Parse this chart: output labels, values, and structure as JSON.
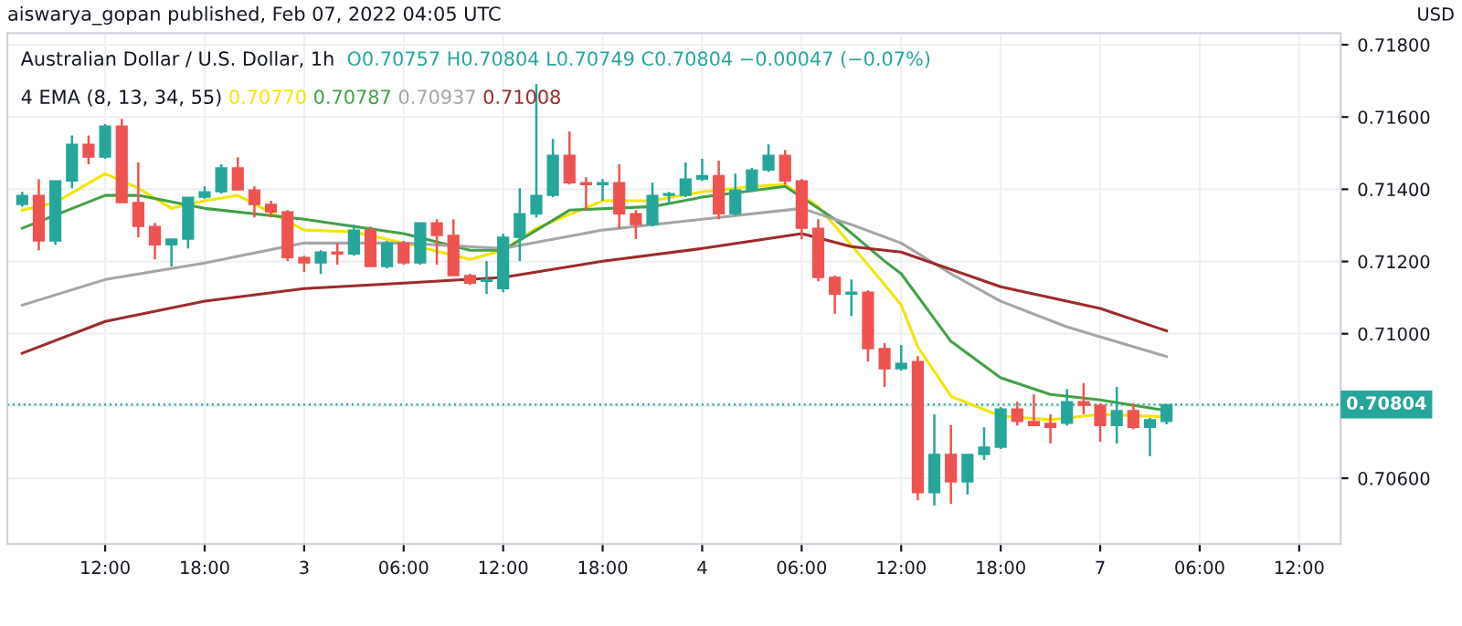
{
  "chart_data": {
    "type": "candlestick",
    "title": "Australian Dollar / U.S. Dollar, 1h",
    "subtitle": "O0.70757 H0.70804 L0.70749 C0.70804 −0.00047 (−0.07%)",
    "ylabel": "USD",
    "annotations": [
      "aiswarya_gopan published, Feb 07, 2022 04:05 UTC",
      "4 EMA (8, 13, 34, 55)"
    ],
    "categories": [
      null,
      null,
      null,
      null,
      null,
      "12:00",
      null,
      null,
      null,
      null,
      null,
      "18:00",
      null,
      null,
      null,
      null,
      null,
      "3",
      null,
      null,
      null,
      null,
      null,
      "06:00",
      null,
      null,
      null,
      null,
      null,
      "12:00",
      null,
      null,
      null,
      null,
      null,
      "18:00",
      null,
      null,
      null,
      null,
      null,
      "4",
      null,
      null,
      null,
      null,
      null,
      "06:00",
      null,
      null,
      null,
      null,
      null,
      "12:00",
      null,
      null,
      null,
      null,
      null,
      "18:00",
      null,
      null,
      null,
      null,
      null,
      "7",
      null,
      null,
      null,
      null,
      null,
      "06:00",
      null,
      null,
      null,
      null,
      null,
      "12:00",
      null,
      null
    ],
    "ohlc": [
      [
        0.71358,
        0.71393,
        0.71352,
        0.71383
      ],
      [
        0.71383,
        0.71428,
        0.71231,
        0.71257
      ],
      [
        0.71257,
        0.71423,
        0.71246,
        0.71423
      ],
      [
        0.71423,
        0.71549,
        0.71403,
        0.71524
      ],
      [
        0.71524,
        0.71549,
        0.71469,
        0.71489
      ],
      [
        0.71489,
        0.7158,
        0.71484,
        0.71575
      ],
      [
        0.71575,
        0.71595,
        0.71363,
        0.71363
      ],
      [
        0.71363,
        0.71474,
        0.71267,
        0.71297
      ],
      [
        0.71297,
        0.71307,
        0.71206,
        0.71246
      ],
      [
        0.71246,
        0.71262,
        0.71186,
        0.71262
      ],
      [
        0.71262,
        0.71378,
        0.71236,
        0.71378
      ],
      [
        0.71378,
        0.71408,
        0.71373,
        0.71393
      ],
      [
        0.71393,
        0.71469,
        0.71388,
        0.71459
      ],
      [
        0.71459,
        0.71489,
        0.71398,
        0.71398
      ],
      [
        0.71398,
        0.71408,
        0.71322,
        0.71358
      ],
      [
        0.71358,
        0.71368,
        0.71322,
        0.71337
      ],
      [
        0.71337,
        0.71342,
        0.71201,
        0.71211
      ],
      [
        0.71211,
        0.71216,
        0.71171,
        0.71196
      ],
      [
        0.71196,
        0.71231,
        0.71166,
        0.71226
      ],
      [
        0.71226,
        0.71251,
        0.71191,
        0.71221
      ],
      [
        0.71221,
        0.71302,
        0.71216,
        0.71287
      ],
      [
        0.71287,
        0.71297,
        0.71186,
        0.71186
      ],
      [
        0.71186,
        0.71257,
        0.71181,
        0.71251
      ],
      [
        0.71251,
        0.71257,
        0.71191,
        0.71196
      ],
      [
        0.71196,
        0.71307,
        0.71191,
        0.71307
      ],
      [
        0.71307,
        0.71317,
        0.71191,
        0.71272
      ],
      [
        0.71272,
        0.71317,
        0.71161,
        0.71161
      ],
      [
        0.71161,
        0.71166,
        0.71135,
        0.7114
      ],
      [
        0.71145,
        0.71201,
        0.7111,
        0.7115
      ],
      [
        0.71125,
        0.71277,
        0.71115,
        0.71267
      ],
      [
        0.71267,
        0.71403,
        0.71201,
        0.71332
      ],
      [
        0.71332,
        0.71691,
        0.71322,
        0.71383
      ],
      [
        0.71383,
        0.71539,
        0.71378,
        0.71494
      ],
      [
        0.71494,
        0.7156,
        0.71413,
        0.71418
      ],
      [
        0.71418,
        0.71433,
        0.71342,
        0.71413
      ],
      [
        0.71413,
        0.71428,
        0.71368,
        0.71418
      ],
      [
        0.71418,
        0.71469,
        0.71292,
        0.71332
      ],
      [
        0.71332,
        0.71342,
        0.71262,
        0.71302
      ],
      [
        0.71302,
        0.71418,
        0.71297,
        0.71383
      ],
      [
        0.71383,
        0.71393,
        0.71358,
        0.71388
      ],
      [
        0.71383,
        0.71474,
        0.71378,
        0.71428
      ],
      [
        0.71428,
        0.71484,
        0.71423,
        0.71438
      ],
      [
        0.71438,
        0.71479,
        0.71317,
        0.71332
      ],
      [
        0.71332,
        0.71443,
        0.71327,
        0.71398
      ],
      [
        0.71398,
        0.71459,
        0.71393,
        0.71453
      ],
      [
        0.71453,
        0.71524,
        0.71448,
        0.71494
      ],
      [
        0.71494,
        0.71509,
        0.71413,
        0.71423
      ],
      [
        0.71423,
        0.71428,
        0.71262,
        0.71292
      ],
      [
        0.71292,
        0.71317,
        0.71145,
        0.71156
      ],
      [
        0.71156,
        0.71161,
        0.71055,
        0.7111
      ],
      [
        0.7111,
        0.7115,
        0.71049,
        0.71115
      ],
      [
        0.71115,
        0.7112,
        0.70923,
        0.70959
      ],
      [
        0.70959,
        0.70974,
        0.70853,
        0.70903
      ],
      [
        0.70903,
        0.70969,
        0.70898,
        0.70918
      ],
      [
        0.70923,
        0.70938,
        0.70539,
        0.7056
      ],
      [
        0.7056,
        0.70777,
        0.70524,
        0.70666
      ],
      [
        0.70666,
        0.70747,
        0.70529,
        0.7059
      ],
      [
        0.7059,
        0.70666,
        0.70555,
        0.70666
      ],
      [
        0.70666,
        0.70741,
        0.70651,
        0.70686
      ],
      [
        0.70686,
        0.70797,
        0.70681,
        0.70792
      ],
      [
        0.70792,
        0.70812,
        0.70746,
        0.70757
      ],
      [
        0.70757,
        0.70832,
        0.70746,
        0.70746
      ],
      [
        0.70752,
        0.70777,
        0.70696,
        0.70741
      ],
      [
        0.70752,
        0.70847,
        0.70746,
        0.70812
      ],
      [
        0.70812,
        0.70863,
        0.70777,
        0.70802
      ],
      [
        0.70802,
        0.70807,
        0.70701,
        0.70746
      ],
      [
        0.70746,
        0.70853,
        0.70696,
        0.70787
      ],
      [
        0.70787,
        0.70807,
        0.70736,
        0.70741
      ],
      [
        0.70741,
        0.70767,
        0.70661,
        0.70762
      ],
      [
        0.70757,
        0.70804,
        0.70749,
        0.70804
      ],
      null,
      null,
      null,
      null,
      null,
      null,
      null,
      null,
      null,
      null
    ],
    "colors": [
      "#26a69a",
      "#ef5350",
      "#26a69a",
      "#26a69a",
      "#ef5350",
      "#26a69a",
      "#ef5350",
      "#ef5350",
      "#ef5350",
      "#26a69a",
      "#26a69a",
      "#26a69a",
      "#26a69a",
      "#ef5350",
      "#ef5350",
      "#ef5350",
      "#ef5350",
      "#ef5350",
      "#26a69a",
      "#ef5350",
      "#26a69a",
      "#ef5350",
      "#26a69a",
      "#ef5350",
      "#26a69a",
      "#ef5350",
      "#ef5350",
      "#ef5350",
      "#26a69a",
      "#26a69a",
      "#26a69a",
      "#26a69a",
      "#26a69a",
      "#ef5350",
      "#ef5350",
      "#26a69a",
      "#ef5350",
      "#ef5350",
      "#26a69a",
      "#26a69a",
      "#26a69a",
      "#26a69a",
      "#ef5350",
      "#26a69a",
      "#26a69a",
      "#26a69a",
      "#ef5350",
      "#ef5350",
      "#ef5350",
      "#ef5350",
      "#26a69a",
      "#ef5350",
      "#ef5350",
      "#26a69a",
      "#ef5350",
      "#26a69a",
      "#ef5350",
      "#26a69a",
      "#26a69a",
      "#26a69a",
      "#ef5350",
      "#ef5350",
      "#ef5350",
      "#26a69a",
      "#ef5350",
      "#ef5350",
      "#26a69a",
      "#ef5350",
      "#26a69a",
      "#26a69a",
      null,
      null,
      null,
      null,
      null,
      null,
      null,
      null,
      null,
      null
    ],
    "series": [
      {
        "type": "line",
        "name": "0.70770",
        "color": "#f2e600",
        "values": [
          0.71342,
          null,
          0.71363,
          null,
          null,
          0.71443,
          null,
          0.71403,
          null,
          0.71347,
          null,
          0.71368,
          null,
          0.71383,
          null,
          null,
          null,
          0.71287,
          null,
          null,
          0.71282,
          null,
          null,
          0.71251,
          null,
          null,
          null,
          0.71206,
          null,
          0.71231,
          null,
          0.71292,
          null,
          null,
          null,
          0.71368,
          null,
          null,
          0.71368,
          null,
          null,
          0.71393,
          null,
          null,
          0.71408,
          null,
          0.71413,
          null,
          0.71352,
          null,
          null,
          0.71191,
          null,
          0.7108,
          0.70964,
          null,
          0.70827,
          null,
          null,
          0.70772,
          null,
          null,
          0.70762,
          null,
          null,
          0.70777,
          null,
          null,
          null,
          0.7077,
          null,
          null,
          null,
          null,
          null,
          null,
          null,
          null,
          null,
          null
        ]
      },
      {
        "type": "line",
        "name": "0.70787",
        "color": "#43a047",
        "values": [
          0.71292,
          null,
          null,
          null,
          null,
          0.71383,
          null,
          0.71383,
          null,
          null,
          null,
          0.71347,
          null,
          null,
          null,
          null,
          null,
          0.71317,
          null,
          null,
          null,
          null,
          null,
          0.71277,
          null,
          null,
          null,
          0.71231,
          null,
          0.71231,
          null,
          null,
          null,
          0.71342,
          null,
          null,
          null,
          null,
          0.71352,
          null,
          null,
          0.71378,
          null,
          null,
          null,
          null,
          0.71408,
          null,
          null,
          0.71317,
          null,
          null,
          0.71201,
          0.71166,
          null,
          null,
          0.70979,
          null,
          null,
          0.70878,
          null,
          null,
          0.70832,
          null,
          null,
          0.70817,
          null,
          null,
          null,
          0.70787,
          null,
          null,
          null,
          null,
          null,
          null,
          null,
          null,
          null,
          null
        ]
      },
      {
        "type": "line",
        "name": "0.70937",
        "color": "#a5a5a5",
        "values": [
          0.71079,
          null,
          null,
          null,
          null,
          0.7115,
          null,
          null,
          null,
          null,
          null,
          0.71196,
          null,
          null,
          null,
          null,
          null,
          0.71251,
          null,
          null,
          null,
          null,
          null,
          0.71251,
          null,
          null,
          null,
          null,
          null,
          0.71236,
          null,
          null,
          null,
          null,
          null,
          0.71287,
          null,
          null,
          null,
          null,
          null,
          0.71317,
          null,
          null,
          null,
          null,
          null,
          0.71347,
          null,
          null,
          0.71302,
          null,
          null,
          0.71251,
          null,
          null,
          0.71166,
          null,
          null,
          0.7109,
          null,
          null,
          null,
          0.71019,
          null,
          null,
          null,
          null,
          null,
          0.70937,
          null,
          null,
          null,
          null,
          null,
          null,
          null,
          null,
          null,
          null
        ]
      },
      {
        "type": "line",
        "name": "0.71008",
        "color": "#9c2b2b",
        "values": [
          0.70946,
          null,
          null,
          null,
          null,
          0.71034,
          null,
          null,
          null,
          null,
          null,
          0.7109,
          null,
          null,
          null,
          null,
          null,
          0.71125,
          null,
          null,
          null,
          null,
          null,
          0.7114,
          null,
          null,
          null,
          null,
          null,
          0.71156,
          null,
          null,
          null,
          null,
          null,
          0.71201,
          null,
          null,
          null,
          null,
          null,
          0.71236,
          null,
          null,
          null,
          null,
          null,
          0.71277,
          null,
          null,
          0.71241,
          null,
          null,
          0.71226,
          null,
          null,
          null,
          null,
          null,
          0.7113,
          null,
          null,
          null,
          null,
          null,
          0.7107,
          null,
          null,
          null,
          0.71008,
          null,
          null,
          null,
          null,
          null,
          null,
          null,
          null,
          null,
          null
        ]
      }
    ],
    "ref_lines": [
      {
        "axis": "y",
        "value": 0.70804,
        "label": "0.70804",
        "color": "#26a69a",
        "line_style": "dotted"
      }
    ],
    "ylim": [
      0.70418,
      0.71832
    ],
    "yticks": [
      {
        "value": 0.706,
        "label": "0.70600"
      },
      {
        "value": 0.708,
        "label": null
      },
      {
        "value": 0.71,
        "label": "0.71000"
      },
      {
        "value": 0.712,
        "label": "0.71200"
      },
      {
        "value": 0.714,
        "label": "0.71400"
      },
      {
        "value": 0.716,
        "label": "0.71600"
      },
      {
        "value": 0.718,
        "label": "0.71800"
      }
    ],
    "grid": true
  }
}
